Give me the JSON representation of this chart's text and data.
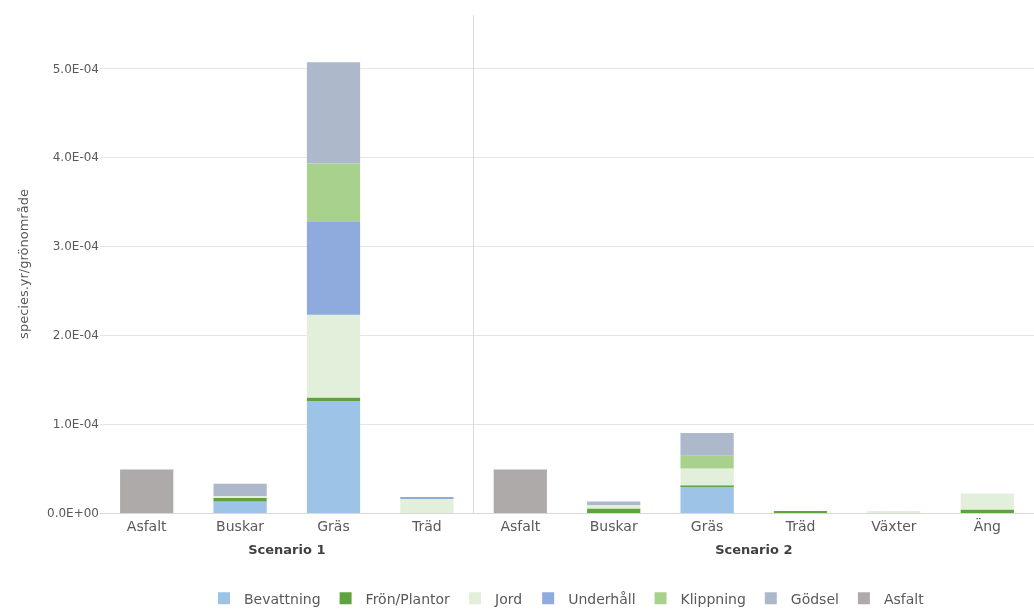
{
  "chart_data": [
    {
      "type": "bar",
      "stacked": true,
      "xlabel": "Scenario 1",
      "ylabel": "species.yr/grönområde",
      "categories": [
        "Asfalt",
        "Buskar",
        "Gräs",
        "Träd"
      ],
      "ylim": [
        0,
        0.00056
      ],
      "yticks": [
        {
          "value": 0,
          "label": "0.0E+00"
        },
        {
          "value": 0.0001,
          "label": "1.0E-04"
        },
        {
          "value": 0.0002,
          "label": "2.0E-04"
        },
        {
          "value": 0.0003,
          "label": "3.0E-04"
        },
        {
          "value": 0.0004,
          "label": "4.0E-04"
        },
        {
          "value": 0.0005,
          "label": "5.0E-04"
        }
      ],
      "grid": "y",
      "legend": "bottom",
      "series": [
        {
          "name": "Bevattning",
          "color": "#9dc3e6",
          "values": [
            0,
            1.3e-05,
            0.000126,
            0
          ]
        },
        {
          "name": "Frön/Plantor",
          "color": "#5fa33e",
          "values": [
            0,
            4e-06,
            4e-06,
            0
          ]
        },
        {
          "name": "Jord",
          "color": "#e2efda",
          "values": [
            0,
            2e-06,
            9.3e-05,
            1.6e-05
          ]
        },
        {
          "name": "Underhåll",
          "color": "#8faadc",
          "values": [
            0,
            0,
            0.000105,
            2e-06
          ]
        },
        {
          "name": "Klippning",
          "color": "#a9d18e",
          "values": [
            0,
            0,
            6.5e-05,
            0
          ]
        },
        {
          "name": "Gödsel",
          "color": "#adb9ca",
          "values": [
            0,
            1.4e-05,
            0.000114,
            0
          ]
        },
        {
          "name": "Asfalt",
          "color": "#aeaaaa",
          "values": [
            4.9e-05,
            0,
            0,
            0
          ]
        }
      ]
    },
    {
      "type": "bar",
      "stacked": true,
      "xlabel": "Scenario 2",
      "categories": [
        "Asfalt",
        "Buskar",
        "Gräs",
        "Träd",
        "Växter",
        "Äng"
      ],
      "ylim": [
        0,
        0.00056
      ],
      "yticks": [
        {
          "value": 0,
          "label": null
        },
        {
          "value": 0.0001,
          "label": null
        },
        {
          "value": 0.0002,
          "label": null
        },
        {
          "value": 0.0003,
          "label": null
        },
        {
          "value": 0.0004,
          "label": null
        },
        {
          "value": 0.0005,
          "label": null
        }
      ],
      "grid": "y",
      "legend": "bottom",
      "tick_labels": "x",
      "series": [
        {
          "name": "Bevattning",
          "color": "#9dc3e6",
          "values": [
            0,
            0,
            3e-05,
            0,
            0,
            0
          ]
        },
        {
          "name": "Frön/Plantor",
          "color": "#5fa33e",
          "values": [
            0,
            5e-06,
            1e-06,
            2e-06,
            0,
            4e-06
          ]
        },
        {
          "name": "Jord",
          "color": "#e2efda",
          "values": [
            0,
            4e-06,
            1.9e-05,
            0,
            2e-06,
            1.8e-05
          ]
        },
        {
          "name": "Underhåll",
          "color": "#8faadc",
          "values": [
            0,
            0,
            0,
            0,
            0,
            0
          ]
        },
        {
          "name": "Klippning",
          "color": "#a9d18e",
          "values": [
            0,
            0,
            1.5e-05,
            0,
            0,
            0
          ]
        },
        {
          "name": "Gödsel",
          "color": "#adb9ca",
          "values": [
            0,
            4e-06,
            2.5e-05,
            0,
            0,
            0
          ]
        },
        {
          "name": "Asfalt",
          "color": "#aeaaaa",
          "values": [
            4.9e-05,
            0,
            0,
            0,
            0,
            0
          ]
        }
      ]
    }
  ]
}
